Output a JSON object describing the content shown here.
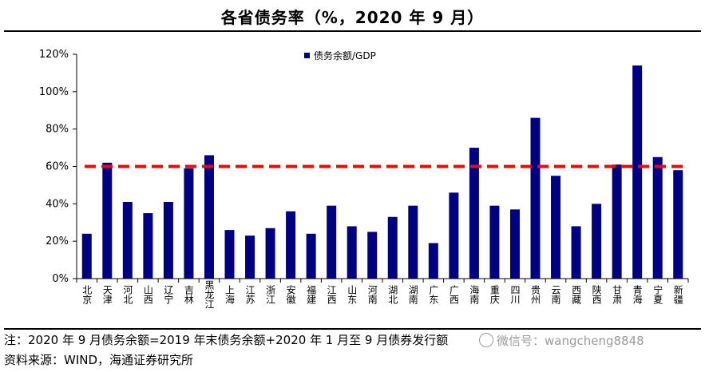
{
  "title": "各省债务率（%，2020 年 9 月）",
  "note": "注：2020 年 9 月债务余额=2019 年末债务余额+2020 年 1 月至 9 月债券发行额",
  "source": "资料来源：WIND，海通证券研究所",
  "watermark": "微信号：wangcheng8848",
  "colors": {
    "bar": "#000080",
    "reference_line": "#ff0000"
  },
  "chart_data": {
    "type": "bar",
    "title": "各省债务率（%，2020 年 9 月）",
    "categories": [
      "北京",
      "天津",
      "河北",
      "山西",
      "辽宁",
      "吉林",
      "黑龙江",
      "上海",
      "江苏",
      "浙江",
      "安徽",
      "福建",
      "江西",
      "山东",
      "河南",
      "湖北",
      "湖南",
      "广东",
      "广西",
      "海南",
      "重庆",
      "四川",
      "贵州",
      "云南",
      "西藏",
      "陕西",
      "甘肃",
      "青海",
      "宁夏",
      "新疆"
    ],
    "series": [
      {
        "name": "债务余额/GDP",
        "values": [
          24,
          62,
          41,
          35,
          41,
          59,
          66,
          26,
          23,
          27,
          36,
          24,
          39,
          28,
          25,
          33,
          39,
          19,
          46,
          70,
          39,
          37,
          86,
          55,
          28,
          40,
          61,
          114,
          65,
          58
        ]
      }
    ],
    "reference_line": 60,
    "ylim": [
      0,
      120
    ],
    "yticks": [
      0,
      20,
      40,
      60,
      80,
      100,
      120
    ],
    "ytick_labels": [
      "0%",
      "20%",
      "40%",
      "60%",
      "80%",
      "100%",
      "120%"
    ],
    "legend": "top-center"
  }
}
